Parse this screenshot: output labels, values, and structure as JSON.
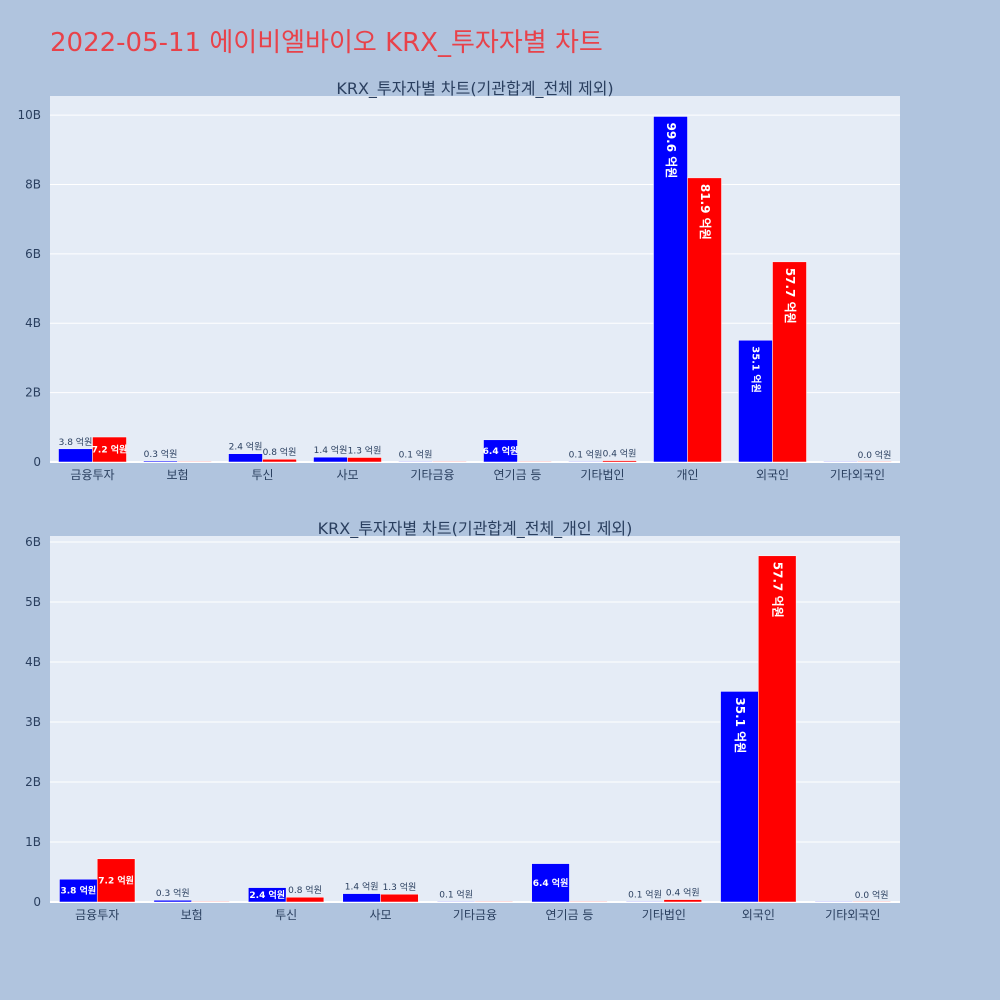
{
  "page": {
    "title": "2022-05-11 에이비엘바이오 KRX_투자자별 차트"
  },
  "chart_data": [
    {
      "type": "bar",
      "title": "KRX_투자자별 차트(기관합계_전체 제외)",
      "categories": [
        "금융투자",
        "보험",
        "투신",
        "사모",
        "기타금융",
        "연기금 등",
        "기타법인",
        "개인",
        "외국인",
        "기타외국인"
      ],
      "ylim": [
        0,
        10.55
      ],
      "yticks": [
        0,
        2,
        4,
        6,
        8,
        10
      ],
      "ytick_labels": [
        "0",
        "2B",
        "4B",
        "6B",
        "8B",
        "10B"
      ],
      "grid": true,
      "series": [
        {
          "color": "#0000ff",
          "values": [
            0.38,
            0.03,
            0.24,
            0.14,
            0.01,
            0.64,
            0.01,
            9.96,
            3.51,
            0
          ],
          "labels": [
            "3.8 억원",
            "0.3 억원",
            "2.4 억원",
            "1.4 억원",
            "0.1 억원",
            "6.4 억원",
            "0.1 억원",
            "99.6 억원",
            "35.1 억원",
            ""
          ]
        },
        {
          "color": "#ff0000",
          "values": [
            0.72,
            0,
            0.08,
            0.13,
            0,
            0,
            0.04,
            8.19,
            5.77,
            0
          ],
          "labels": [
            "7.2 억원",
            "",
            "0.8 억원",
            "1.3 억원",
            "",
            "",
            "0.4 억원",
            "81.9 억원",
            "57.7 억원",
            "0.0 억원"
          ]
        }
      ]
    },
    {
      "type": "bar",
      "title": "KRX_투자자별 차트(기관합계_전체_개인 제외)",
      "categories": [
        "금융투자",
        "보험",
        "투신",
        "사모",
        "기타금융",
        "연기금 등",
        "기타법인",
        "외국인",
        "기타외국인"
      ],
      "ylim": [
        0,
        6.1
      ],
      "yticks": [
        0,
        1,
        2,
        3,
        4,
        5,
        6
      ],
      "ytick_labels": [
        "0",
        "1B",
        "2B",
        "3B",
        "4B",
        "5B",
        "6B"
      ],
      "grid": true,
      "series": [
        {
          "color": "#0000ff",
          "values": [
            0.38,
            0.03,
            0.24,
            0.14,
            0.01,
            0.64,
            0.01,
            3.51,
            0
          ],
          "labels": [
            "3.8 억원",
            "0.3 억원",
            "2.4 억원",
            "1.4 억원",
            "0.1 억원",
            "6.4 억원",
            "0.1 억원",
            "35.1 억원",
            ""
          ]
        },
        {
          "color": "#ff0000",
          "values": [
            0.72,
            0,
            0.08,
            0.13,
            0,
            0,
            0.04,
            5.77,
            0
          ],
          "labels": [
            "7.2 억원",
            "",
            "0.8 억원",
            "1.3 억원",
            "",
            "",
            "0.4 억원",
            "57.7 억원",
            "0.0 억원"
          ]
        }
      ]
    }
  ]
}
